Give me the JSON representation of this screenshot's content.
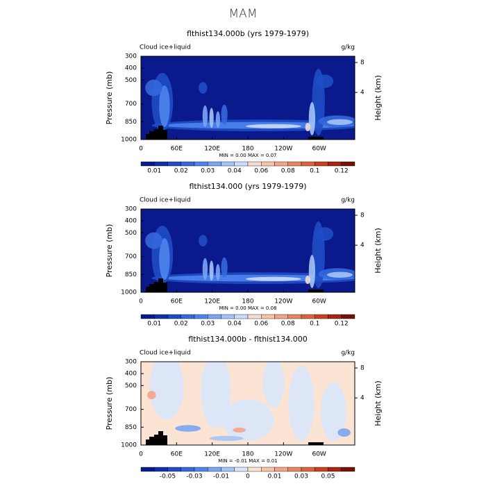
{
  "page_title": "MAM",
  "chart_data": [
    {
      "type": "contour",
      "title": "flthist134.000b (yrs 1979-1979)",
      "subtitle": "Cloud ice+liquid",
      "units": "g/kg",
      "ylabel": "Pressure (mb)",
      "y2label": "Height (km)",
      "xlim": [
        0,
        360
      ],
      "xticks": [
        0,
        {
          "value": 60,
          "label": "60E"
        },
        {
          "value": 120,
          "label": "120E"
        },
        180,
        {
          "value": 240,
          "label": "120W"
        },
        {
          "value": 300,
          "label": "60W"
        }
      ],
      "ylim": [
        1000,
        300
      ],
      "yticks": [
        300,
        400,
        500,
        700,
        850,
        1000
      ],
      "y2lim": [
        -2.3,
        8.84
      ],
      "y2ticks": [
        4,
        8
      ],
      "stats": "MIN =    0.00   MAX =    0.07",
      "colorbar_labels": [
        0.01,
        0.02,
        0.03,
        0.04,
        0.06,
        0.08,
        0.1,
        0.12
      ],
      "colors": [
        "#0a1a8c",
        "#1230a8",
        "#1f4cc4",
        "#3468dc",
        "#4f84ec",
        "#7aa4f4",
        "#a4c4f8",
        "#cadcfb",
        "#f4ddd0",
        "#f6c2a8",
        "#f2a484",
        "#ea8460",
        "#dc643c",
        "#c8421e",
        "#a62410",
        "#761008"
      ]
    },
    {
      "type": "contour",
      "title": "flthist134.000 (yrs 1979-1979)",
      "subtitle": "Cloud ice+liquid",
      "units": "g/kg",
      "ylabel": "Pressure (mb)",
      "y2label": "Height (km)",
      "xlim": [
        0,
        360
      ],
      "xticks": [
        0,
        {
          "value": 60,
          "label": "60E"
        },
        {
          "value": 120,
          "label": "120E"
        },
        180,
        {
          "value": 240,
          "label": "120W"
        },
        {
          "value": 300,
          "label": "60W"
        }
      ],
      "ylim": [
        1000,
        300
      ],
      "yticks": [
        300,
        400,
        500,
        700,
        850,
        1000
      ],
      "y2lim": [
        -2.3,
        8.84
      ],
      "y2ticks": [
        4,
        8
      ],
      "stats": "MIN =    0.00   MAX =    0.08",
      "colorbar_labels": [
        0.01,
        0.02,
        0.03,
        0.04,
        0.06,
        0.08,
        0.1,
        0.12
      ],
      "colors": [
        "#0a1a8c",
        "#1230a8",
        "#1f4cc4",
        "#3468dc",
        "#4f84ec",
        "#7aa4f4",
        "#a4c4f8",
        "#cadcfb",
        "#f4ddd0",
        "#f6c2a8",
        "#f2a484",
        "#ea8460",
        "#dc643c",
        "#c8421e",
        "#a62410",
        "#761008"
      ]
    },
    {
      "type": "contour",
      "title": "flthist134.000b - flthist134.000",
      "subtitle": "Cloud ice+liquid",
      "units": "g/kg",
      "ylabel": "Pressure (mb)",
      "y2label": "Height (km)",
      "xlim": [
        0,
        360
      ],
      "xticks": [
        0,
        {
          "value": 60,
          "label": "60E"
        },
        {
          "value": 120,
          "label": "120E"
        },
        180,
        {
          "value": 240,
          "label": "120W"
        },
        {
          "value": 300,
          "label": "60W"
        }
      ],
      "ylim": [
        1000,
        300
      ],
      "yticks": [
        300,
        400,
        500,
        700,
        850,
        1000
      ],
      "y2lim": [
        -2.3,
        8.84
      ],
      "y2ticks": [
        4,
        8
      ],
      "stats": "MIN =   -0.01   MAX =    0.01",
      "colorbar_labels": [
        -0.05,
        -0.03,
        -0.01,
        0,
        0.01,
        0.03,
        0.05
      ],
      "colors": [
        "#0a1a8c",
        "#1230a8",
        "#1f4cc4",
        "#3468dc",
        "#4f84ec",
        "#7aa4f4",
        "#a4c4f8",
        "#d8e6fb",
        "#fbe4d4",
        "#f6c2a8",
        "#f2a484",
        "#ea8460",
        "#dc643c",
        "#c8421e",
        "#a62410",
        "#761008"
      ]
    }
  ]
}
